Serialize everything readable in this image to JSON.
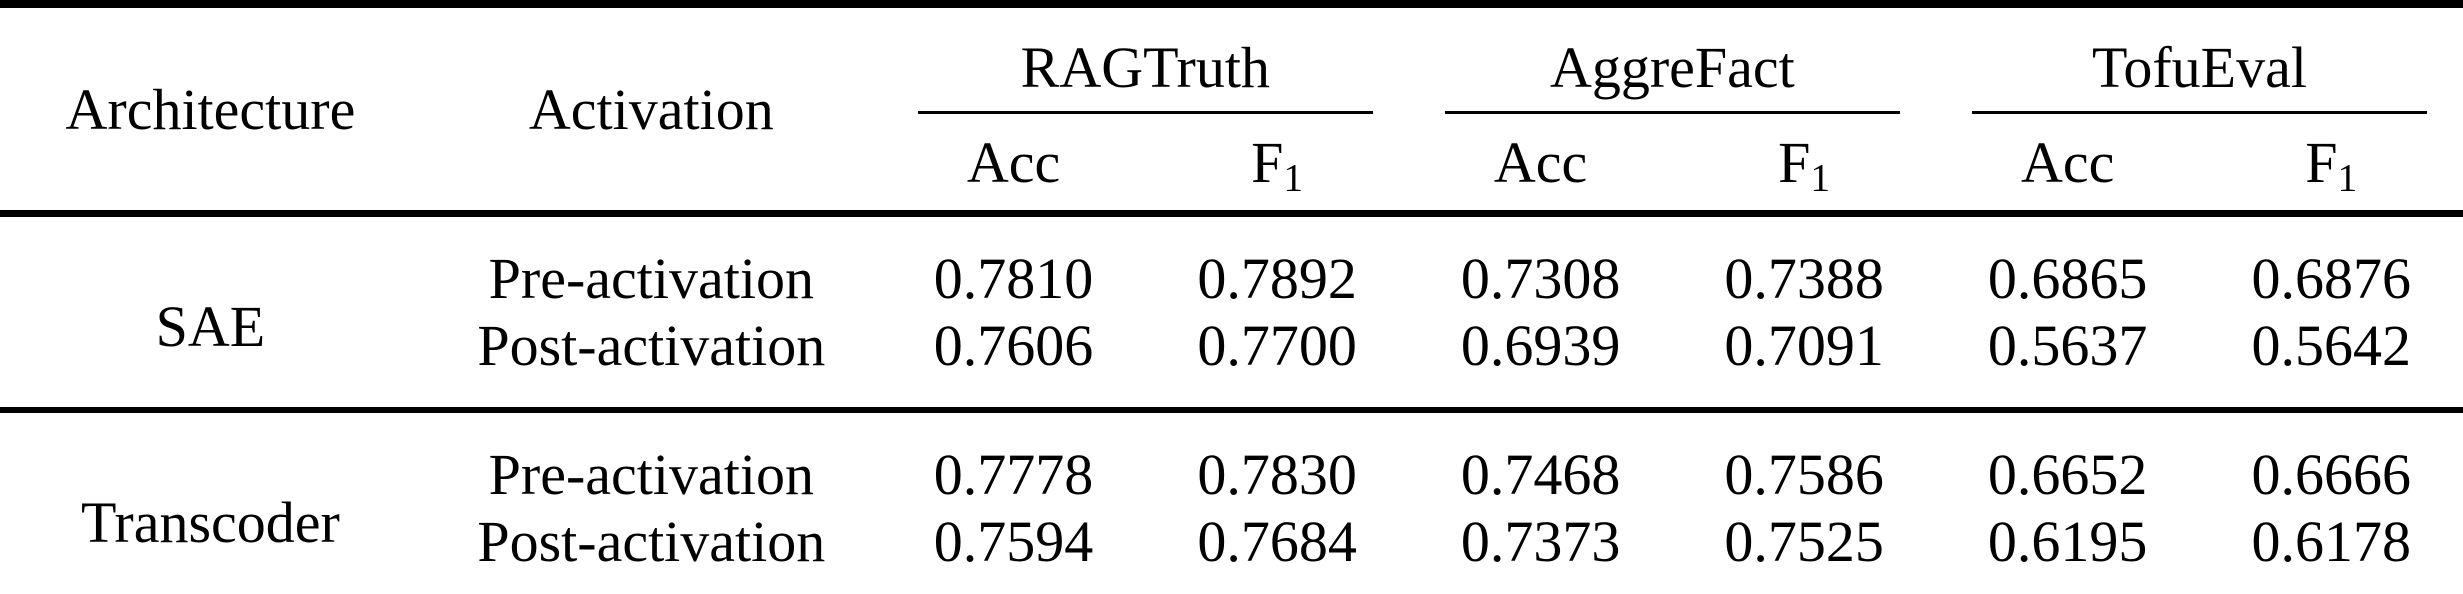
{
  "table": {
    "headers": {
      "architecture": "Architecture",
      "activation": "Activation",
      "acc": "Acc",
      "f1_base": "F",
      "f1_sub": "1"
    },
    "group_headers": [
      "RAGTruth",
      "AggreFact",
      "TofuEval"
    ],
    "body": [
      {
        "architecture": "SAE",
        "rows": [
          {
            "activation": "Pre-activation",
            "values": [
              "0.7810",
              "0.7892",
              "0.7308",
              "0.7388",
              "0.6865",
              "0.6876"
            ]
          },
          {
            "activation": "Post-activation",
            "values": [
              "0.7606",
              "0.7700",
              "0.6939",
              "0.7091",
              "0.5637",
              "0.5642"
            ]
          }
        ]
      },
      {
        "architecture": "Transcoder",
        "rows": [
          {
            "activation": "Pre-activation",
            "values": [
              "0.7778",
              "0.7830",
              "0.7468",
              "0.7586",
              "0.6652",
              "0.6666"
            ]
          },
          {
            "activation": "Post-activation",
            "values": [
              "0.7594",
              "0.7684",
              "0.7373",
              "0.7525",
              "0.6195",
              "0.6178"
            ]
          }
        ]
      }
    ],
    "colors": {
      "text": "#000000",
      "background": "#ffffff",
      "rule": "#000000"
    }
  },
  "chart_data": {
    "type": "table",
    "columns": [
      "Architecture",
      "Activation",
      "RAGTruth Acc",
      "RAGTruth F1",
      "AggreFact Acc",
      "AggreFact F1",
      "TofuEval Acc",
      "TofuEval F1"
    ],
    "rows": [
      [
        "SAE",
        "Pre-activation",
        0.781,
        0.7892,
        0.7308,
        0.7388,
        0.6865,
        0.6876
      ],
      [
        "SAE",
        "Post-activation",
        0.7606,
        0.77,
        0.6939,
        0.7091,
        0.5637,
        0.5642
      ],
      [
        "Transcoder",
        "Pre-activation",
        0.7778,
        0.783,
        0.7468,
        0.7586,
        0.6652,
        0.6666
      ],
      [
        "Transcoder",
        "Post-activation",
        0.7594,
        0.7684,
        0.7373,
        0.7525,
        0.6195,
        0.6178
      ]
    ]
  }
}
